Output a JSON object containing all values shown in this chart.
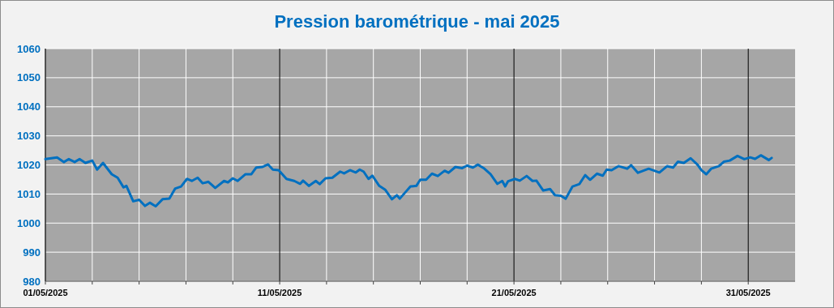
{
  "chart_data": {
    "type": "line",
    "title": "Pression barométrique - mai 2025",
    "x": [
      "2025-05-01T00:00",
      "2025-05-01T12:00",
      "2025-05-01T19:00",
      "2025-05-02T00:00",
      "2025-05-02T06:00",
      "2025-05-02T11:00",
      "2025-05-02T17:00",
      "2025-05-03T00:00",
      "2025-05-03T05:00",
      "2025-05-03T11:00",
      "2025-05-03T20:00",
      "2025-05-04T02:00",
      "2025-05-04T08:00",
      "2025-05-04T11:00",
      "2025-05-04T18:00",
      "2025-05-05T00:00",
      "2025-05-05T06:00",
      "2025-05-05T11:00",
      "2025-05-05T17:00",
      "2025-05-06T00:00",
      "2025-05-06T07:00",
      "2025-05-06T13:00",
      "2025-05-06T19:00",
      "2025-05-07T01:00",
      "2025-05-07T06:00",
      "2025-05-07T12:00",
      "2025-05-07T17:00",
      "2025-05-07T23:00",
      "2025-05-08T06:00",
      "2025-05-08T15:00",
      "2025-05-08T19:00",
      "2025-05-09T00:00",
      "2025-05-09T05:00",
      "2025-05-09T13:00",
      "2025-05-09T19:00",
      "2025-05-10T00:00",
      "2025-05-10T06:00",
      "2025-05-10T12:00",
      "2025-05-10T17:00",
      "2025-05-10T23:00",
      "2025-05-11T07:00",
      "2025-05-11T15:00",
      "2025-05-11T21:00",
      "2025-05-12T00:00",
      "2025-05-12T06:00",
      "2025-05-12T13:00",
      "2025-05-12T17:00",
      "2025-05-12T23:00",
      "2025-05-13T06:00",
      "2025-05-13T14:00",
      "2025-05-13T18:00",
      "2025-05-14T00:00",
      "2025-05-14T06:00",
      "2025-05-14T10:00",
      "2025-05-14T14:00",
      "2025-05-14T19:00",
      "2025-05-14T23:00",
      "2025-05-15T06:00",
      "2025-05-15T12:00",
      "2025-05-15T19:00",
      "2025-05-16T00:00",
      "2025-05-16T03:00",
      "2025-05-16T09:00",
      "2025-05-16T14:00",
      "2025-05-16T20:00",
      "2025-05-17T00:00",
      "2025-05-17T06:00",
      "2025-05-17T12:00",
      "2025-05-17T18:00",
      "2025-05-18T01:00",
      "2025-05-18T05:00",
      "2025-05-18T12:00",
      "2025-05-18T19:00",
      "2025-05-19T00:00",
      "2025-05-19T06:00",
      "2025-05-19T11:00",
      "2025-05-19T17:00",
      "2025-05-20T00:00",
      "2025-05-20T07:00",
      "2025-05-20T12:00",
      "2025-05-20T15:00",
      "2025-05-20T18:00",
      "2025-05-21T01:00",
      "2025-05-21T06:00",
      "2025-05-21T13:00",
      "2025-05-21T19:00",
      "2025-05-21T23:00",
      "2025-05-22T06:00",
      "2025-05-22T13:00",
      "2025-05-22T18:00",
      "2025-05-23T00:00",
      "2025-05-23T05:00",
      "2025-05-23T12:00",
      "2025-05-23T19:00",
      "2025-05-24T01:00",
      "2025-05-24T06:00",
      "2025-05-24T13:00",
      "2025-05-24T19:00",
      "2025-05-24T23:00",
      "2025-05-25T04:00",
      "2025-05-25T11:00",
      "2025-05-25T20:00",
      "2025-05-26T00:00",
      "2025-05-26T07:00",
      "2025-05-26T18:00",
      "2025-05-27T05:00",
      "2025-05-27T13:00",
      "2025-05-27T19:00",
      "2025-05-28T00:00",
      "2025-05-28T06:00",
      "2025-05-28T13:00",
      "2025-05-28T20:00",
      "2025-05-29T00:00",
      "2025-05-29T05:00",
      "2025-05-29T10:00",
      "2025-05-29T18:00",
      "2025-05-29T23:00",
      "2025-05-30T05:00",
      "2025-05-30T13:00",
      "2025-05-30T20:00",
      "2025-05-31T02:00",
      "2025-05-31T07:00",
      "2025-05-31T13:00",
      "2025-05-31T21:00",
      "2025-06-01T00:00"
    ],
    "series": [
      {
        "color": "#0070c0",
        "values": [
          1022.0,
          1022.6,
          1021,
          1022,
          1021,
          1022,
          1020.7,
          1021.5,
          1018.4,
          1020.7,
          1016.8,
          1015.6,
          1012.3,
          1012.8,
          1007.5,
          1008,
          1005.9,
          1007,
          1005.8,
          1008.2,
          1008.4,
          1011.9,
          1012.6,
          1015.2,
          1014.5,
          1015.6,
          1013.7,
          1014.2,
          1012.1,
          1014.5,
          1014,
          1015.4,
          1014.5,
          1016.8,
          1016.8,
          1019.1,
          1019.3,
          1020.2,
          1018.4,
          1018.2,
          1015.2,
          1014.5,
          1013.5,
          1014.6,
          1012.8,
          1014.5,
          1013.4,
          1015.4,
          1015.6,
          1017.7,
          1017.1,
          1018.2,
          1017.4,
          1018.4,
          1017.7,
          1015.2,
          1016.3,
          1012.8,
          1011.5,
          1008.2,
          1009.6,
          1008.4,
          1010.7,
          1012.6,
          1012.8,
          1014.9,
          1014.9,
          1017,
          1016.2,
          1018,
          1017.3,
          1019.3,
          1018.9,
          1019.8,
          1019.1,
          1020.1,
          1018.9,
          1016.8,
          1013.5,
          1014.5,
          1012.6,
          1014.4,
          1015.2,
          1014.6,
          1016.2,
          1014.5,
          1014.6,
          1011.2,
          1011.7,
          1009.6,
          1009.4,
          1008.4,
          1012.6,
          1013.4,
          1016.5,
          1014.9,
          1017,
          1016.3,
          1018.4,
          1018.2,
          1019.6,
          1018.7,
          1019.9,
          1017.3,
          1018.7,
          1017.4,
          1019.6,
          1019.1,
          1021.1,
          1020.7,
          1022.3,
          1020.1,
          1018.2,
          1016.8,
          1018.7,
          1019.6,
          1021.1,
          1021.5,
          1023.1,
          1022,
          1022.6,
          1022.1,
          1023.3,
          1021.7,
          1022.4
        ]
      }
    ],
    "xlim": [
      "2025-05-01",
      "2025-06-02"
    ],
    "xticks": [
      {
        "value": "2025-05-01",
        "label": "01/05/2025"
      },
      {
        "value": "2025-05-03",
        "label": null
      },
      {
        "value": "2025-05-05",
        "label": null
      },
      {
        "value": "2025-05-07",
        "label": null
      },
      {
        "value": "2025-05-09",
        "label": null
      },
      {
        "value": "2025-05-11",
        "label": "11/05/2025"
      },
      {
        "value": "2025-05-13",
        "label": null
      },
      {
        "value": "2025-05-15",
        "label": null
      },
      {
        "value": "2025-05-17",
        "label": null
      },
      {
        "value": "2025-05-19",
        "label": null
      },
      {
        "value": "2025-05-21",
        "label": "21/05/2025"
      },
      {
        "value": "2025-05-23",
        "label": null
      },
      {
        "value": "2025-05-25",
        "label": null
      },
      {
        "value": "2025-05-27",
        "label": null
      },
      {
        "value": "2025-05-29",
        "label": null
      },
      {
        "value": "2025-05-31",
        "label": "31/05/2025"
      }
    ],
    "ylim": [
      980,
      1060
    ],
    "yticks": [
      980,
      990,
      1000,
      1010,
      1020,
      1030,
      1040,
      1050,
      1060
    ],
    "grid": true
  }
}
